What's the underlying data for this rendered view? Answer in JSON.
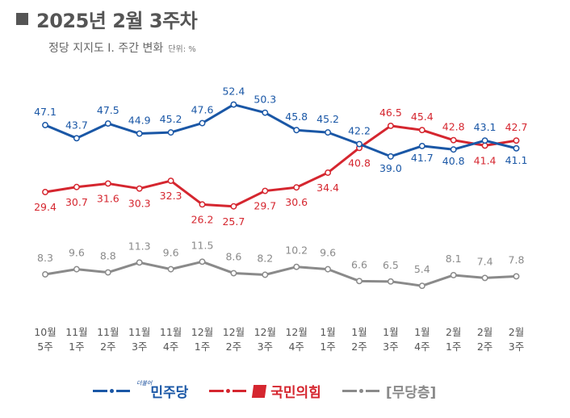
{
  "header": {
    "title": "2025년 2월 3주차",
    "subtitle": "정당 지지도 Ⅰ. 주간 변화",
    "unit": "단위: %"
  },
  "chart_data": {
    "type": "line",
    "title": "2025년 2월 3주차",
    "subtitle": "정당 지지도 Ⅰ. 주간 변화",
    "unit": "%",
    "categories": [
      [
        "10월",
        "5주"
      ],
      [
        "11월",
        "1주"
      ],
      [
        "11월",
        "2주"
      ],
      [
        "11월",
        "3주"
      ],
      [
        "11월",
        "4주"
      ],
      [
        "12월",
        "1주"
      ],
      [
        "12월",
        "2주"
      ],
      [
        "12월",
        "3주"
      ],
      [
        "12월",
        "4주"
      ],
      [
        "1월",
        "1주"
      ],
      [
        "1월",
        "2주"
      ],
      [
        "1월",
        "3주"
      ],
      [
        "1월",
        "4주"
      ],
      [
        "2월",
        "1주"
      ],
      [
        "2월",
        "2주"
      ],
      [
        "2월",
        "3주"
      ]
    ],
    "series": [
      {
        "name": "더불어민주당",
        "legend_label": "민주당",
        "legend_tag": "더불어",
        "color": "#1a57a6",
        "values": [
          47.1,
          43.7,
          47.5,
          44.9,
          45.2,
          47.6,
          52.4,
          50.3,
          45.8,
          45.2,
          42.2,
          39.0,
          41.7,
          40.8,
          43.1,
          41.1
        ],
        "labels": [
          "47.1",
          "43.7",
          "47.5",
          "44.9",
          "45.2",
          "47.6",
          "52.4",
          "50.3",
          "45.8",
          "45.2",
          "42.2",
          "39.0",
          "41.7",
          "40.8",
          "43.1",
          "41.1"
        ]
      },
      {
        "name": "국민의힘",
        "legend_label": "국민의힘",
        "color": "#d5262f",
        "values": [
          29.4,
          30.7,
          31.6,
          30.3,
          32.3,
          26.2,
          25.7,
          29.7,
          30.6,
          34.4,
          40.8,
          46.5,
          45.4,
          42.8,
          41.4,
          42.7
        ],
        "labels": [
          "29.4",
          "30.7",
          "31.6",
          "30.3",
          "32.3",
          "26.2",
          "25.7",
          "29.7",
          "30.6",
          "34.4",
          "40.8",
          "46.5",
          "45.4",
          "42.8",
          "41.4",
          "42.7"
        ]
      },
      {
        "name": "무당층",
        "legend_label": "[무당층]",
        "color": "#8a8a8a",
        "values": [
          8.3,
          9.6,
          8.8,
          11.3,
          9.6,
          11.5,
          8.6,
          8.2,
          10.2,
          9.6,
          6.6,
          6.5,
          5.4,
          8.1,
          7.4,
          7.8
        ],
        "labels": [
          "8.3",
          "9.6",
          "8.8",
          "11.3",
          "9.6",
          "11.5",
          "8.6",
          "8.2",
          "10.2",
          "9.6",
          "6.6",
          "6.5",
          "5.4",
          "8.1",
          "7.4",
          "7.8"
        ]
      }
    ],
    "xlabel": "",
    "ylabel": "",
    "grid": false,
    "legend_position": "bottom"
  }
}
